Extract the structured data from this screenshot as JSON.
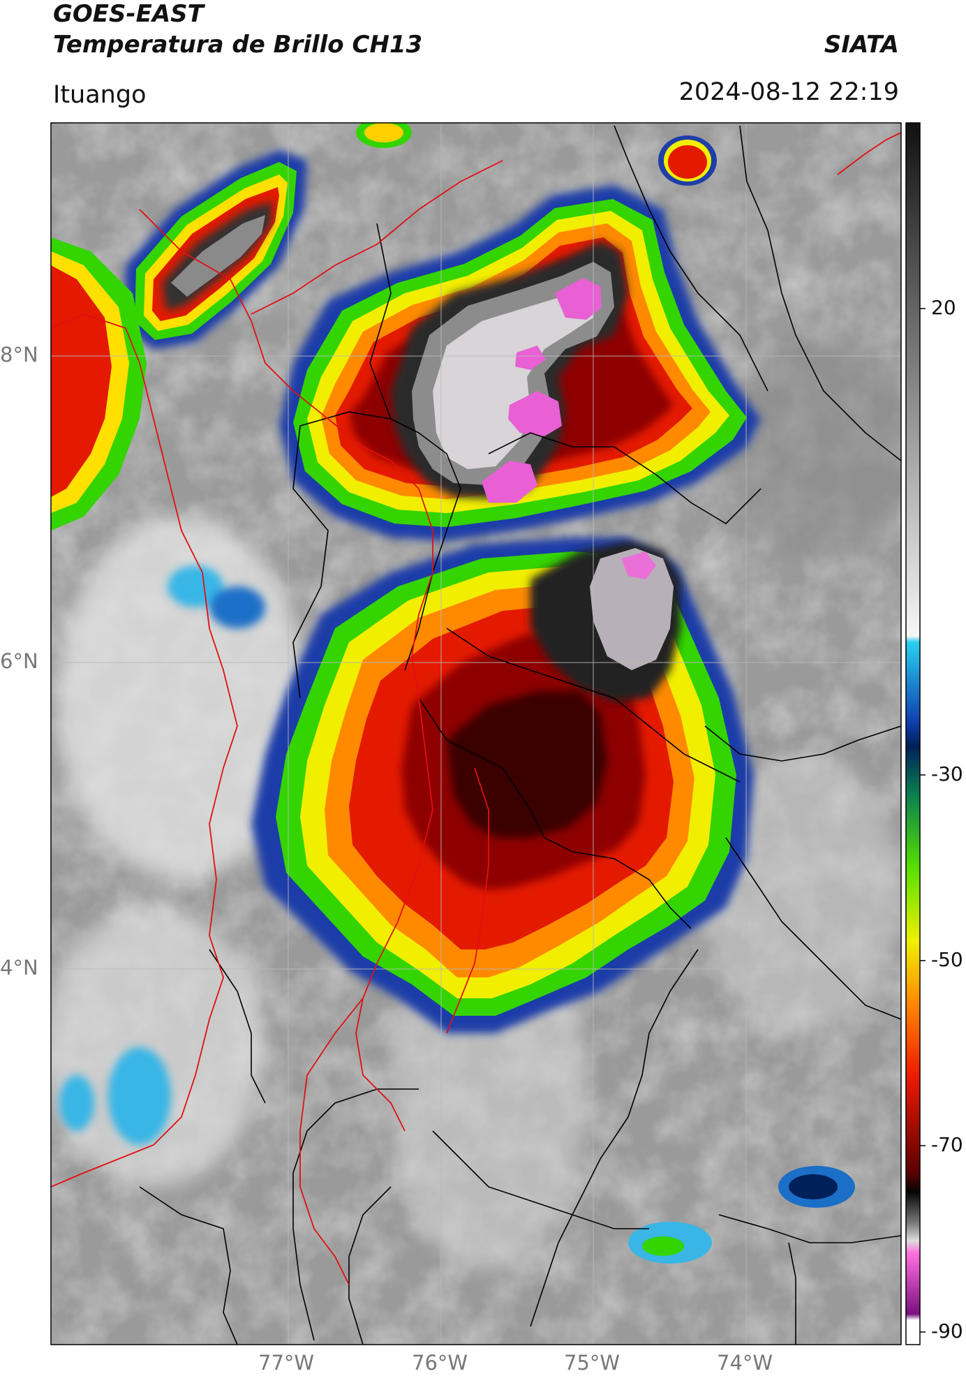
{
  "header": {
    "satellite": "GOES-EAST",
    "product": "Temperatura de Brillo CH13",
    "organization": "SIATA",
    "location": "Ituango",
    "datetime": "2024-08-12 22:19"
  },
  "map": {
    "lat_ticks": [
      "8°N",
      "6°N",
      "4°N"
    ],
    "lon_ticks": [
      "77°W",
      "76°W",
      "75°W",
      "74°W"
    ],
    "colors": {
      "land_border": "#000000",
      "region_border": "#e01010",
      "grid": "#b8b8b8"
    }
  },
  "colorbar": {
    "labels": [
      "20",
      "-30",
      "-50",
      "-70",
      "-90"
    ],
    "units": ""
  }
}
